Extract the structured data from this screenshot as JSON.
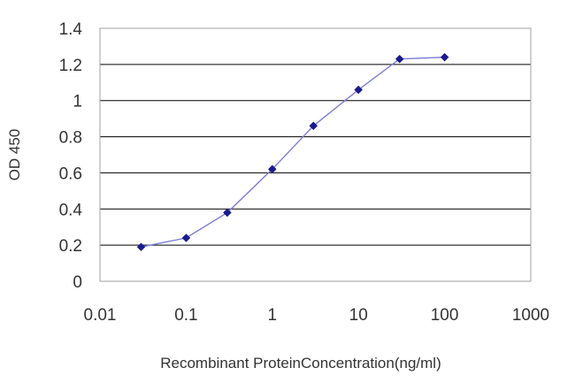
{
  "chart_data": {
    "type": "line",
    "title": "",
    "xlabel": "Recombinant ProteinConcentration(ng/ml)",
    "ylabel": "OD 450",
    "x_scale": "log",
    "xlim": [
      0.01,
      1000
    ],
    "ylim": [
      0,
      1.4
    ],
    "x_ticks": [
      "0.01",
      "0.1",
      "1",
      "10",
      "100",
      "1000"
    ],
    "y_ticks": [
      "0",
      "0.2",
      "0.4",
      "0.6",
      "0.8",
      "1",
      "1.2",
      "1.4"
    ],
    "grid": "horizontal",
    "series": [
      {
        "x": [
          0.03,
          0.1,
          0.3,
          1,
          3,
          10,
          30,
          100
        ],
        "y": [
          0.19,
          0.24,
          0.38,
          0.62,
          0.86,
          1.06,
          1.23,
          1.24
        ]
      }
    ],
    "colors": {
      "line": "#7b7bd6",
      "marker": "#1a1a8c",
      "grid": "#000000",
      "frame": "#a0a0a0",
      "text": "#333333"
    }
  }
}
